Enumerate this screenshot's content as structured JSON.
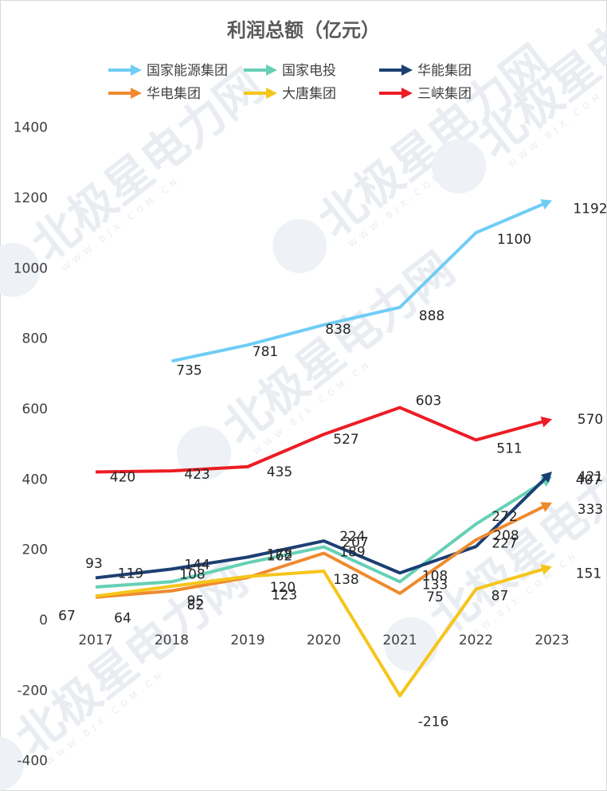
{
  "chart_data": {
    "type": "line",
    "title": "利润总额（亿元）",
    "categories": [
      "2017",
      "2018",
      "2019",
      "2020",
      "2021",
      "2022",
      "2023"
    ],
    "yticks": [
      1400,
      1200,
      1000,
      800,
      600,
      400,
      200,
      0,
      -200,
      -400
    ],
    "ylim": [
      -400,
      1400
    ],
    "legend_position": "top",
    "series": [
      {
        "name": "国家能源集团",
        "color": "#6fcdf6",
        "values": [
          null,
          735,
          781,
          838,
          888,
          1100,
          1192
        ]
      },
      {
        "name": "国家电投",
        "color": "#66d0b6",
        "values": [
          93,
          108,
          162,
          207,
          108,
          272,
          407
        ]
      },
      {
        "name": "华能集团",
        "color": "#1c3f73",
        "values": [
          119,
          144,
          178,
          224,
          133,
          208,
          421
        ]
      },
      {
        "name": "华电集团",
        "color": "#ef8a2f",
        "values": [
          64,
          82,
          120,
          189,
          75,
          227,
          333
        ]
      },
      {
        "name": "大唐集团",
        "color": "#f6c51b",
        "values": [
          67,
          95,
          123,
          138,
          -216,
          87,
          151
        ]
      },
      {
        "name": "三峡集团",
        "color": "#ec1c24",
        "values": [
          420,
          423,
          435,
          527,
          603,
          511,
          570
        ]
      }
    ]
  }
}
